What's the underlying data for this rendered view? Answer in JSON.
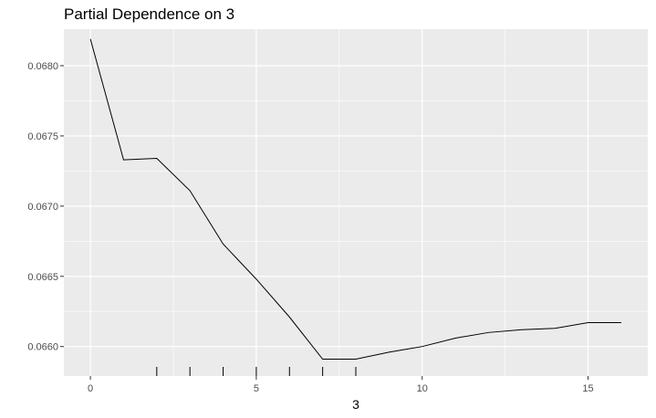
{
  "chart_data": {
    "type": "line",
    "title": "Partial Dependence on 3",
    "xlabel": "3",
    "ylabel": "",
    "xlim": [
      -0.8,
      16.8
    ],
    "ylim": [
      0.06579,
      0.06826
    ],
    "x_ticks": [
      0,
      5,
      10,
      15
    ],
    "x_tick_labels": [
      "0",
      "5",
      "10",
      "15"
    ],
    "y_ticks": [
      0.066,
      0.0665,
      0.067,
      0.0675,
      0.068
    ],
    "y_tick_labels": [
      "0.0660",
      "0.0665",
      "0.0670",
      "0.0675",
      "0.0680"
    ],
    "series": [
      {
        "x": [
          0,
          1,
          2,
          3,
          4,
          5,
          6,
          7,
          8,
          9,
          10,
          11,
          12,
          13,
          14,
          15,
          16
        ],
        "y": [
          0.06819,
          0.06733,
          0.06734,
          0.06711,
          0.06673,
          0.06648,
          0.06621,
          0.06591,
          0.06591,
          0.06596,
          0.066,
          0.06606,
          0.0661,
          0.06612,
          0.06613,
          0.06617,
          0.06617
        ]
      }
    ],
    "rug_x": [
      2,
      3,
      4,
      5,
      6,
      7,
      8
    ],
    "grid": true,
    "background_color": "#ebebeb",
    "grid_color": "#ffffff",
    "line_color": "#000000"
  }
}
